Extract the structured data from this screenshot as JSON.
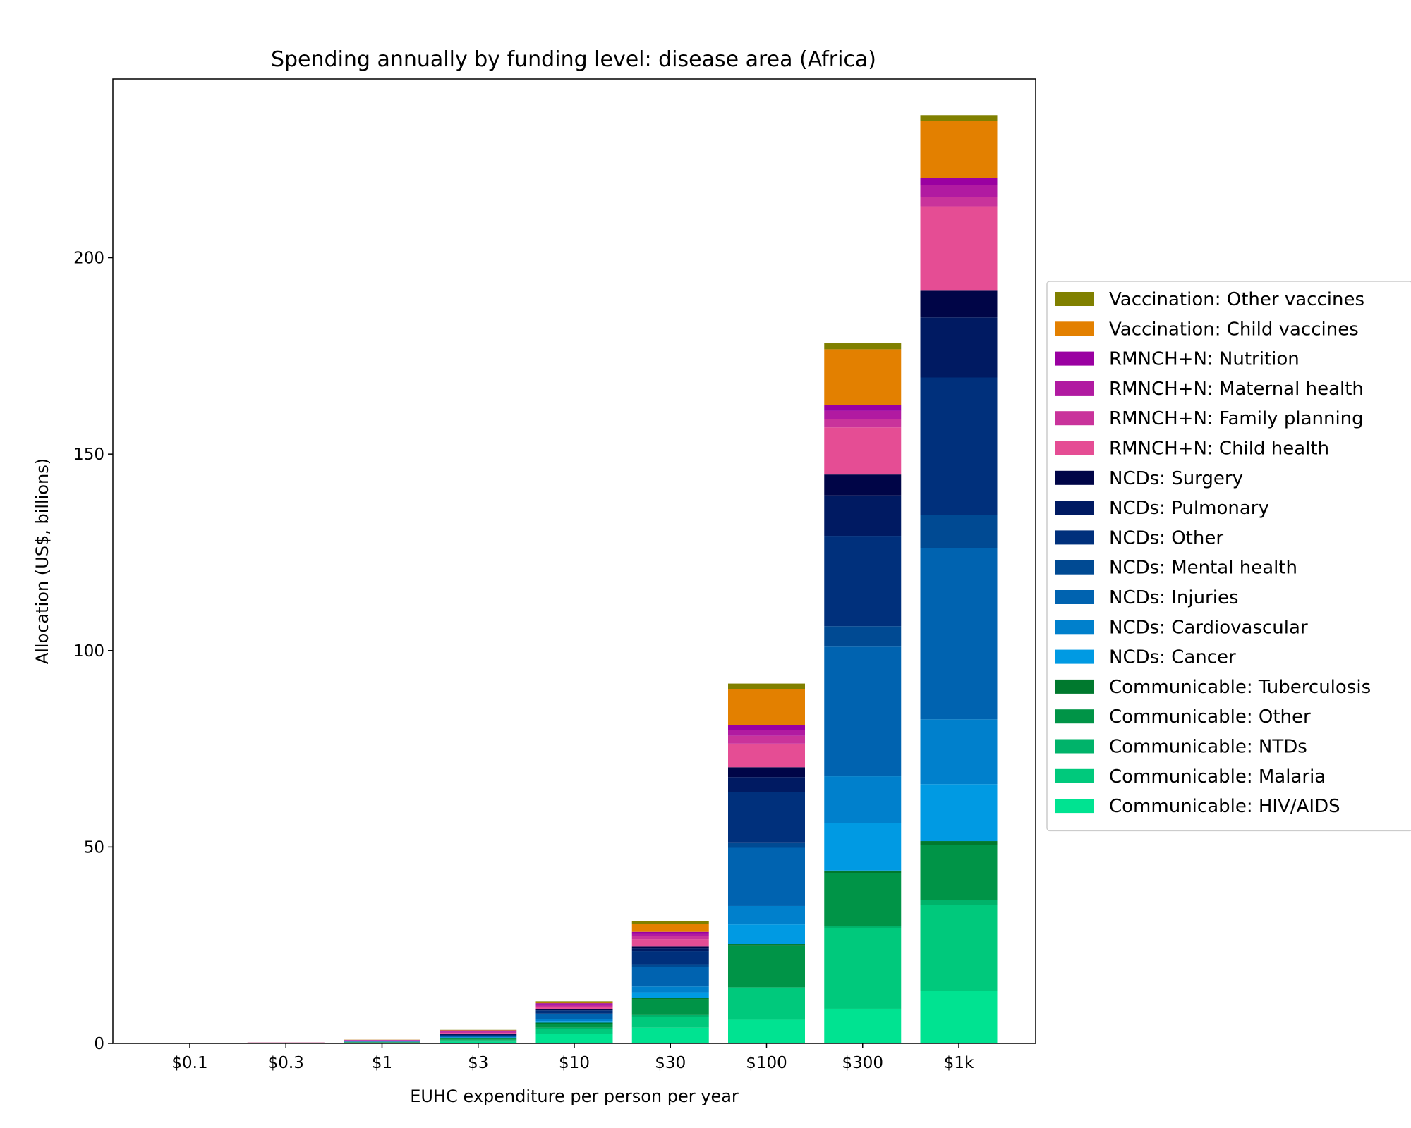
{
  "chart_data": {
    "type": "bar",
    "stacked": true,
    "title": "Spending annually by funding level: disease area (Africa)",
    "xlabel": "EUHC expenditure per person per year",
    "ylabel": "Allocation (US$, billions)",
    "ylim": [
      0,
      245.5
    ],
    "yticks": [
      0,
      50,
      100,
      150,
      200
    ],
    "grid": false,
    "legend_position": "right",
    "categories": [
      "$0.1",
      "$0.3",
      "$1",
      "$3",
      "$10",
      "$30",
      "$100",
      "$300",
      "$1k"
    ],
    "series": [
      {
        "name": "Communicable: HIV/AIDS",
        "color": "#00e391",
        "values": [
          0.01,
          0.03,
          0.1,
          0.4,
          2.4,
          4.0,
          6.0,
          8.8,
          13.3
        ]
      },
      {
        "name": "Communicable: Malaria",
        "color": "#00c97c",
        "values": [
          0.01,
          0.02,
          0.08,
          0.35,
          1.2,
          2.7,
          8.0,
          20.5,
          22.0
        ]
      },
      {
        "name": "Communicable: NTDs",
        "color": "#00b36a",
        "values": [
          0.005,
          0.01,
          0.05,
          0.2,
          0.4,
          0.5,
          0.3,
          0.5,
          1.2
        ]
      },
      {
        "name": "Communicable: Other",
        "color": "#009447",
        "values": [
          0.01,
          0.02,
          0.1,
          0.3,
          1.0,
          4.0,
          10.5,
          13.5,
          14.0
        ]
      },
      {
        "name": "Communicable: Tuberculosis",
        "color": "#00792e",
        "values": [
          0.005,
          0.01,
          0.05,
          0.1,
          0.3,
          0.3,
          0.5,
          0.7,
          1.0
        ]
      },
      {
        "name": "NCDs: Cancer",
        "color": "#009ae3",
        "values": [
          0,
          0.01,
          0.02,
          0.1,
          0.4,
          1.5,
          5.0,
          12.0,
          14.5
        ]
      },
      {
        "name": "NCDs: Cardiovascular",
        "color": "#0080cc",
        "values": [
          0,
          0.01,
          0.03,
          0.15,
          0.5,
          1.5,
          4.7,
          12.0,
          16.5
        ]
      },
      {
        "name": "NCDs: Injuries",
        "color": "#0063b0",
        "values": [
          0.005,
          0.02,
          0.08,
          0.3,
          1.2,
          5.0,
          14.8,
          33.0,
          43.5
        ]
      },
      {
        "name": "NCDs: Mental health",
        "color": "#004a93",
        "values": [
          0,
          0.01,
          0.02,
          0.05,
          0.2,
          0.5,
          1.2,
          5.2,
          8.5
        ]
      },
      {
        "name": "NCDs: Other",
        "color": "#00307c",
        "values": [
          0.005,
          0.02,
          0.06,
          0.2,
          0.8,
          3.5,
          13.0,
          23.0,
          35.0
        ]
      },
      {
        "name": "NCDs: Pulmonary",
        "color": "#001a62",
        "values": [
          0,
          0.01,
          0.03,
          0.1,
          0.2,
          0.7,
          3.8,
          10.3,
          15.3
        ]
      },
      {
        "name": "NCDs: Surgery",
        "color": "#000547",
        "values": [
          0,
          0.005,
          0.02,
          0.1,
          0.2,
          0.5,
          2.5,
          5.3,
          6.8
        ]
      },
      {
        "name": "RMNCH+N: Child health",
        "color": "#e54d94",
        "values": [
          0.005,
          0.02,
          0.08,
          0.3,
          0.5,
          1.8,
          6.0,
          12.0,
          21.5
        ]
      },
      {
        "name": "RMNCH+N: Family planning",
        "color": "#c9339b",
        "values": [
          0.005,
          0.02,
          0.07,
          0.25,
          0.3,
          0.8,
          2.0,
          2.2,
          2.4
        ]
      },
      {
        "name": "RMNCH+N: Maternal health",
        "color": "#b11aa1",
        "values": [
          0.005,
          0.02,
          0.06,
          0.2,
          0.3,
          0.6,
          1.5,
          2.0,
          3.0
        ]
      },
      {
        "name": "RMNCH+N: Nutrition",
        "color": "#9a00a1",
        "values": [
          0.005,
          0.02,
          0.06,
          0.2,
          0.3,
          0.5,
          1.3,
          1.5,
          1.8
        ]
      },
      {
        "name": "Vaccination: Child vaccines",
        "color": "#e38000",
        "values": [
          0,
          0.01,
          0.04,
          0.1,
          0.3,
          2.0,
          9.0,
          14.2,
          14.5
        ]
      },
      {
        "name": "Vaccination: Other vaccines",
        "color": "#808000",
        "values": [
          0,
          0.005,
          0.02,
          0.05,
          0.2,
          0.8,
          1.5,
          1.5,
          1.5
        ]
      }
    ]
  }
}
